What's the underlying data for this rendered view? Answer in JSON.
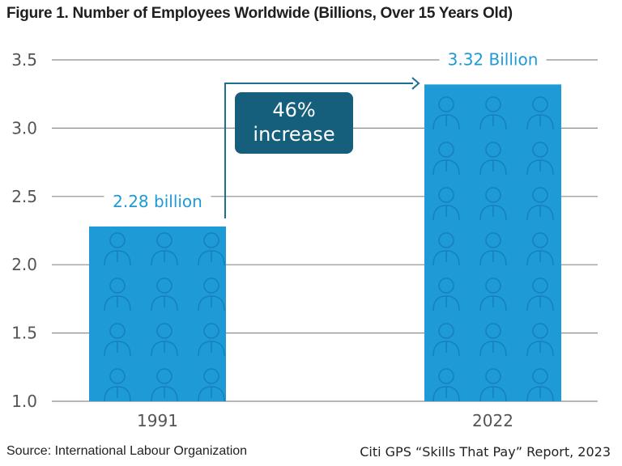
{
  "title": "Figure 1. Number of Employees Worldwide (Billions, Over 15 Years Old)",
  "source": "Source: International Labour Organization",
  "credit": "Citi GPS “Skills That Pay” Report, 2023",
  "annotation": {
    "line1": "46%",
    "line2": "increase"
  },
  "colors": {
    "bar": "#1e9ad6",
    "bar_pattern": "#1582bb",
    "label": "#1e9ad6",
    "annotation_box": "#155f7c",
    "grid": "#8c8c8c"
  },
  "chart_data": {
    "type": "bar",
    "categories": [
      "1991",
      "2022"
    ],
    "values": [
      2.28,
      3.32
    ],
    "data_labels": [
      "2.28 billion",
      "3.32 Billion"
    ],
    "yticks": [
      "1.0",
      "1.5",
      "2.0",
      "2.5",
      "3.0",
      "3.5"
    ],
    "ylim": [
      1.0,
      3.5
    ],
    "grid": true,
    "xlabel": "",
    "ylabel": ""
  }
}
